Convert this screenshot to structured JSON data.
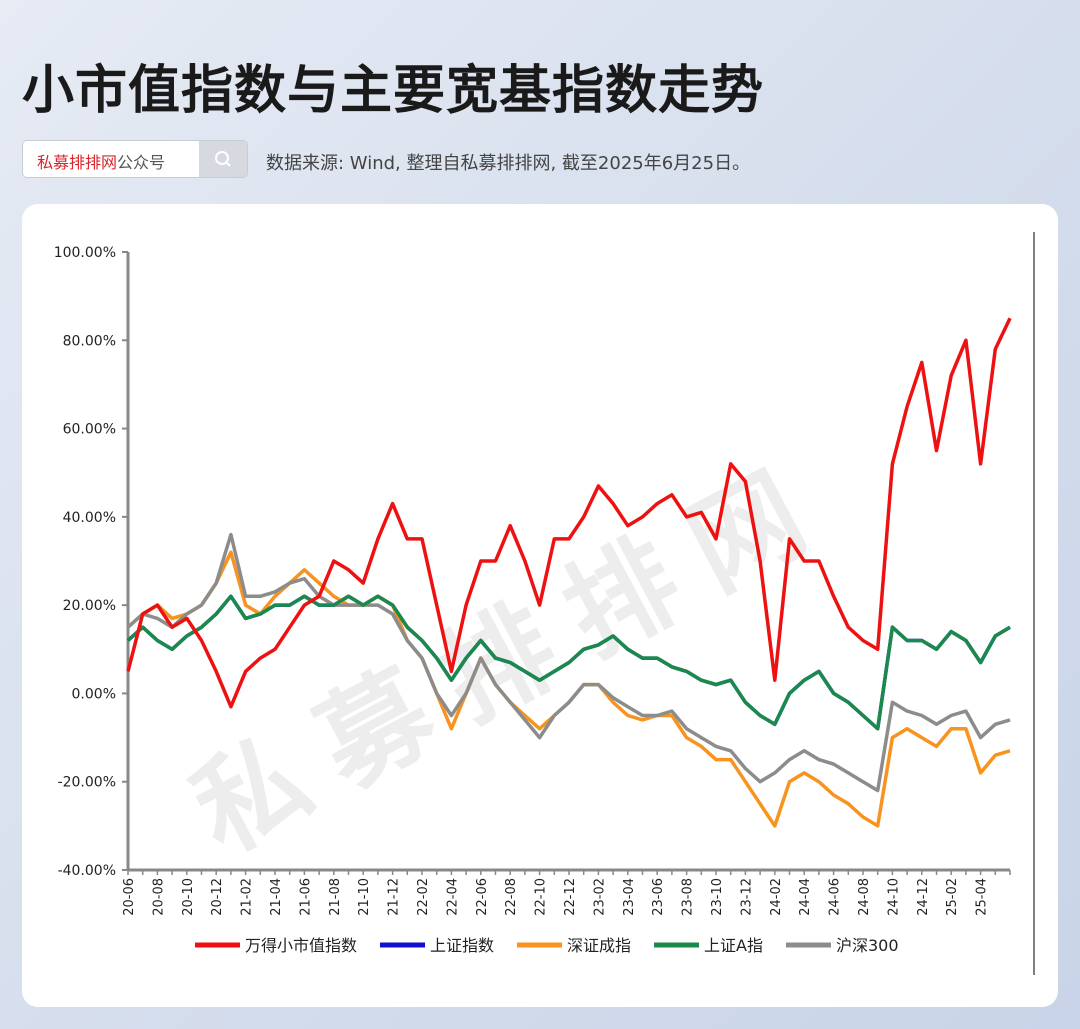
{
  "header": {
    "title": "小市值指数与主要宽基指数走势",
    "search_brand": "私募排排网",
    "search_suffix": "公众号",
    "source": "数据来源: Wind, 整理自私募排排网, 截至2025年6月25日。"
  },
  "chart_data": {
    "type": "line",
    "watermark": "私募排排网",
    "categories": [
      "20-06",
      null,
      "20-08",
      null,
      "20-10",
      null,
      "20-12",
      null,
      "21-02",
      null,
      "21-04",
      null,
      "21-06",
      null,
      "21-08",
      null,
      "21-10",
      null,
      "21-12",
      null,
      "22-02",
      null,
      "22-04",
      null,
      "22-06",
      null,
      "22-08",
      null,
      "22-10",
      null,
      "22-12",
      null,
      "23-02",
      null,
      "23-04",
      null,
      "23-06",
      null,
      "23-08",
      null,
      "23-10",
      null,
      "23-12",
      null,
      "24-02",
      null,
      "24-04",
      null,
      "24-06",
      null,
      "24-08",
      null,
      "24-10",
      null,
      "24-12",
      null,
      "25-02",
      null,
      "25-04",
      null,
      null
    ],
    "ylim": [
      -40,
      100
    ],
    "yticks": [
      {
        "value": -40,
        "label": "-40.00%"
      },
      {
        "value": -20,
        "label": "-20.00%"
      },
      {
        "value": 0,
        "label": "0.00%"
      },
      {
        "value": 20,
        "label": "20.00%"
      },
      {
        "value": 40,
        "label": "40.00%"
      },
      {
        "value": 60,
        "label": "60.00%"
      },
      {
        "value": 80,
        "label": "80.00%"
      },
      {
        "value": 100,
        "label": "100.00%"
      }
    ],
    "grid": false,
    "legend": "bottom",
    "series": [
      {
        "name": "上证指数",
        "color": "#1010d0",
        "values": [
          12,
          15,
          12,
          10,
          13,
          15,
          18,
          22,
          17,
          18,
          20,
          20,
          22,
          20,
          20,
          22,
          20,
          22,
          20,
          15,
          12,
          8,
          3,
          8,
          12,
          8,
          7,
          5,
          3,
          5,
          7,
          10,
          11,
          13,
          10,
          8,
          8,
          6,
          5,
          3,
          2,
          3,
          -2,
          -5,
          -7,
          0,
          3,
          5,
          0,
          -2,
          -5,
          -8,
          15,
          12,
          12,
          10,
          14,
          12,
          7,
          13,
          15
        ]
      },
      {
        "name": "深证成指",
        "color": "#f7931e",
        "values": [
          15,
          18,
          20,
          17,
          18,
          20,
          25,
          32,
          20,
          18,
          22,
          25,
          28,
          25,
          22,
          20,
          20,
          22,
          20,
          12,
          8,
          0,
          -8,
          0,
          8,
          2,
          -2,
          -5,
          -8,
          -5,
          -2,
          2,
          2,
          -2,
          -5,
          -6,
          -5,
          -5,
          -10,
          -12,
          -15,
          -15,
          -20,
          -25,
          -30,
          -20,
          -18,
          -20,
          -23,
          -25,
          -28,
          -30,
          -10,
          -8,
          -10,
          -12,
          -8,
          -8,
          -18,
          -14,
          -13
        ]
      },
      {
        "name": "沪深300",
        "color": "#8c8c8c",
        "values": [
          15,
          18,
          17,
          15,
          18,
          20,
          25,
          36,
          22,
          22,
          23,
          25,
          26,
          22,
          20,
          20,
          20,
          20,
          18,
          12,
          8,
          0,
          -5,
          0,
          8,
          2,
          -2,
          -6,
          -10,
          -5,
          -2,
          2,
          2,
          -1,
          -3,
          -5,
          -5,
          -4,
          -8,
          -10,
          -12,
          -13,
          -17,
          -20,
          -18,
          -15,
          -13,
          -15,
          -16,
          -18,
          -20,
          -22,
          -2,
          -4,
          -5,
          -7,
          -5,
          -4,
          -10,
          -7,
          -6
        ]
      },
      {
        "name": "上证A指",
        "color": "#1a8a4a",
        "values": [
          12,
          15,
          12,
          10,
          13,
          15,
          18,
          22,
          17,
          18,
          20,
          20,
          22,
          20,
          20,
          22,
          20,
          22,
          20,
          15,
          12,
          8,
          3,
          8,
          12,
          8,
          7,
          5,
          3,
          5,
          7,
          10,
          11,
          13,
          10,
          8,
          8,
          6,
          5,
          3,
          2,
          3,
          -2,
          -5,
          -7,
          0,
          3,
          5,
          0,
          -2,
          -5,
          -8,
          15,
          12,
          12,
          10,
          14,
          12,
          7,
          13,
          15
        ]
      },
      {
        "name": "万得小市值指数",
        "color": "#ee1111",
        "values": [
          5,
          18,
          20,
          15,
          17,
          12,
          5,
          -3,
          5,
          8,
          10,
          15,
          20,
          22,
          30,
          28,
          25,
          35,
          43,
          35,
          35,
          20,
          5,
          20,
          30,
          30,
          38,
          30,
          20,
          35,
          35,
          40,
          47,
          43,
          38,
          40,
          43,
          45,
          40,
          41,
          35,
          52,
          48,
          30,
          3,
          35,
          30,
          30,
          22,
          15,
          12,
          10,
          52,
          65,
          75,
          55,
          72,
          80,
          52,
          78,
          85
        ]
      }
    ],
    "legend_order": [
      4,
      0,
      1,
      3,
      2
    ]
  }
}
